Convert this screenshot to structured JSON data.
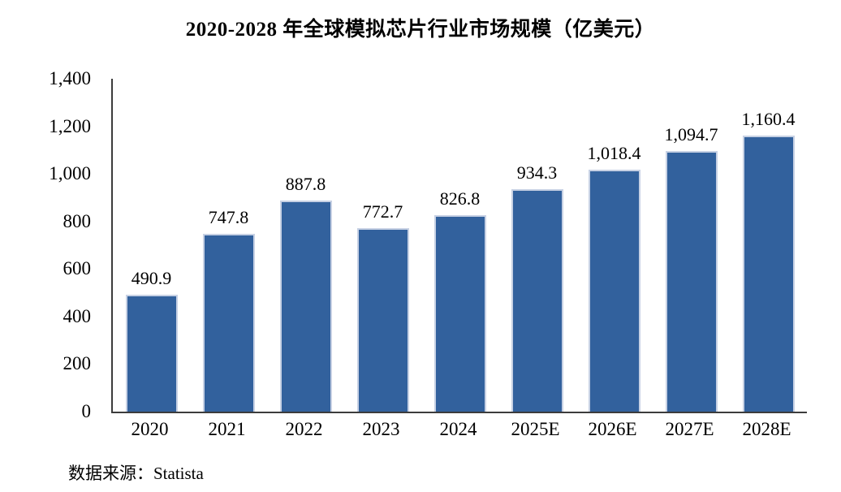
{
  "title": "2020-2028 年全球模拟芯片行业市场规模（亿美元）",
  "source_note": "数据来源：Statista",
  "chart_data": {
    "type": "bar",
    "title": "2020-2028 年全球模拟芯片行业市场规模（亿美元）",
    "categories": [
      "2020",
      "2021",
      "2022",
      "2023",
      "2024",
      "2025E",
      "2026E",
      "2027E",
      "2028E"
    ],
    "values": [
      490.9,
      747.8,
      887.8,
      772.7,
      826.8,
      934.3,
      1018.4,
      1094.7,
      1160.4
    ],
    "value_labels": [
      "490.9",
      "747.8",
      "887.8",
      "772.7",
      "826.8",
      "934.3",
      "1,018.4",
      "1,094.7",
      "1,160.4"
    ],
    "y_ticks": [
      "1,400",
      "1,200",
      "1,000",
      "800",
      "600",
      "400",
      "200",
      "0"
    ],
    "ylim": [
      0,
      1400
    ],
    "xlabel": "",
    "ylabel": "",
    "grid": false,
    "legend": "none",
    "bar_color": "#32619D",
    "bar_border_color": "#C7D1E4",
    "axis_color": "#3C3C3C",
    "source": "数据来源：Statista"
  }
}
